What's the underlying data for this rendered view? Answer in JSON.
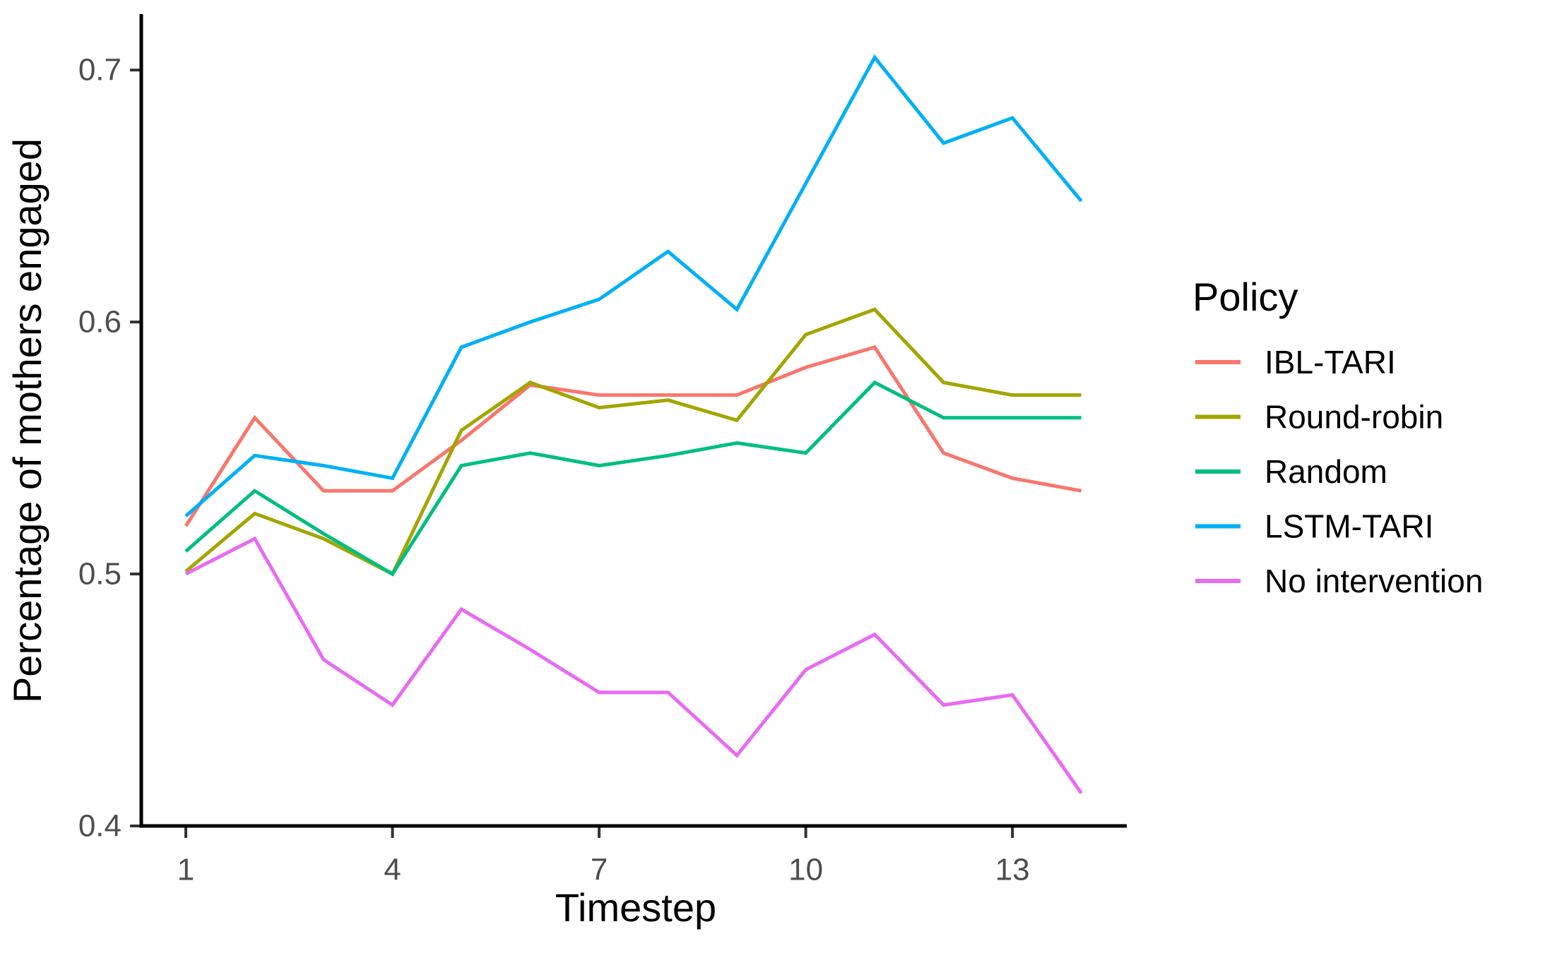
{
  "chart_data": {
    "type": "line",
    "x": [
      1,
      2,
      3,
      4,
      5,
      6,
      7,
      8,
      9,
      10,
      11,
      12,
      13,
      14
    ],
    "series": [
      {
        "name": "IBL-TARI",
        "color": "#F8766D",
        "values": [
          0.519,
          0.562,
          0.533,
          0.533,
          0.553,
          0.575,
          0.571,
          0.571,
          0.571,
          0.582,
          0.59,
          0.548,
          0.538,
          0.533
        ]
      },
      {
        "name": "Round-robin",
        "color": "#A3A500",
        "values": [
          0.501,
          0.524,
          0.514,
          0.5,
          0.557,
          0.576,
          0.566,
          0.569,
          0.561,
          0.595,
          0.605,
          0.576,
          0.571,
          0.571
        ]
      },
      {
        "name": "Random",
        "color": "#00BF7D",
        "values": [
          0.509,
          0.533,
          0.516,
          0.5,
          0.543,
          0.548,
          0.543,
          0.547,
          0.552,
          0.548,
          0.576,
          0.562,
          0.562,
          0.562
        ]
      },
      {
        "name": "LSTM-TARI",
        "color": "#00B0F6",
        "values": [
          0.523,
          0.547,
          0.543,
          0.538,
          0.59,
          0.6,
          0.609,
          0.628,
          0.605,
          0.655,
          0.705,
          0.671,
          0.681,
          0.648
        ]
      },
      {
        "name": "No intervention",
        "color": "#E76BF3",
        "values": [
          0.5,
          0.514,
          0.466,
          0.448,
          0.486,
          0.47,
          0.453,
          0.453,
          0.428,
          0.462,
          0.476,
          0.448,
          0.452,
          0.413
        ]
      }
    ],
    "title": "",
    "xlabel": "Timestep",
    "ylabel": "Percentage of mothers engaged",
    "x_ticks": [
      1,
      4,
      7,
      10,
      13
    ],
    "y_ticks": [
      "0.4",
      "0.5",
      "0.6",
      "0.7"
    ],
    "x_axis_range": [
      0.374,
      14.66
    ],
    "y_axis_range": [
      0.4,
      0.7222
    ],
    "grid": false,
    "legend_title": "Policy",
    "legend_position": "right",
    "axis_color": "#000000",
    "tick_color": "#333333",
    "tick_label_color": "#4d4d4d"
  }
}
